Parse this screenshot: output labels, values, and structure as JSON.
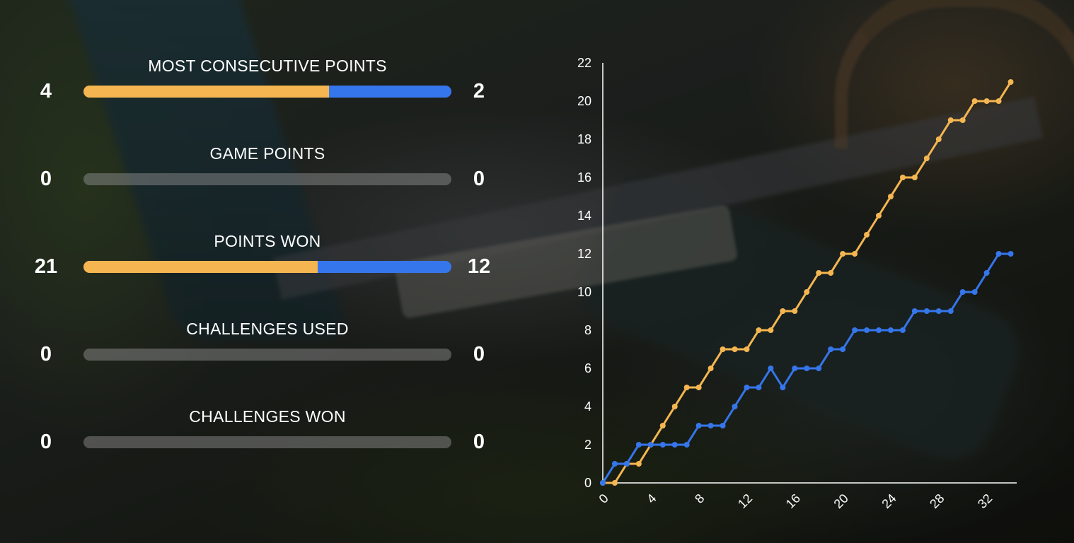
{
  "stats": [
    {
      "title": "MOST CONSECUTIVE POINTS",
      "left": "4",
      "right": "2",
      "left_value": 4,
      "right_value": 2
    },
    {
      "title": "GAME POINTS",
      "left": "0",
      "right": "0",
      "left_value": 0,
      "right_value": 0
    },
    {
      "title": "POINTS WON",
      "left": "21",
      "right": "12",
      "left_value": 21,
      "right_value": 12
    },
    {
      "title": "CHALLENGES USED",
      "left": "0",
      "right": "0",
      "left_value": 0,
      "right_value": 0
    },
    {
      "title": "CHALLENGES WON",
      "left": "0",
      "right": "0",
      "left_value": 0,
      "right_value": 0
    }
  ],
  "colors": {
    "player_a": "#f5b651",
    "player_b": "#3676ec",
    "empty_bar": "#8a8a8a"
  },
  "chart_data": {
    "type": "line",
    "x": [
      0,
      1,
      2,
      3,
      4,
      5,
      6,
      7,
      8,
      9,
      10,
      11,
      12,
      13,
      14,
      15,
      16,
      17,
      18,
      19,
      20,
      21,
      22,
      23,
      24,
      25,
      26,
      27,
      28,
      29,
      30,
      31,
      32,
      33,
      34
    ],
    "series": [
      {
        "color": "#f5b651",
        "values": [
          0,
          0,
          1,
          1,
          2,
          3,
          4,
          5,
          5,
          6,
          7,
          7,
          7,
          8,
          8,
          9,
          9,
          10,
          11,
          11,
          12,
          12,
          13,
          14,
          15,
          16,
          16,
          17,
          18,
          19,
          19,
          20,
          20,
          20,
          21
        ]
      },
      {
        "color": "#3676ec",
        "values": [
          0,
          1,
          1,
          2,
          2,
          2,
          2,
          2,
          3,
          3,
          3,
          4,
          5,
          5,
          6,
          5,
          6,
          6,
          6,
          7,
          7,
          8,
          8,
          8,
          8,
          8,
          9,
          9,
          9,
          9,
          10,
          10,
          11,
          12,
          12
        ]
      }
    ],
    "xticks": [
      0,
      4,
      8,
      12,
      16,
      20,
      24,
      28,
      32
    ],
    "yticks": [
      0,
      2,
      4,
      6,
      8,
      10,
      12,
      14,
      16,
      18,
      20,
      22
    ],
    "xlim": [
      0,
      34.5
    ],
    "ylim": [
      0,
      22
    ],
    "grid": false,
    "legend": "none"
  }
}
